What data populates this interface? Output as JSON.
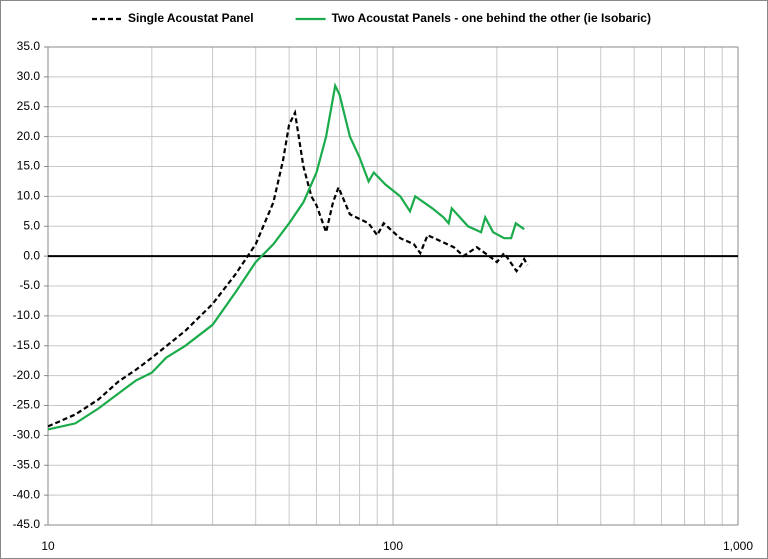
{
  "chart_data": {
    "type": "line",
    "xscale": "log",
    "grid": true,
    "legend": "top",
    "xlim": [
      10,
      1000
    ],
    "xticks": [
      10,
      100,
      {
        "value": 1000,
        "label": "1,000"
      }
    ],
    "ylim": [
      -45,
      35
    ],
    "yticks": [
      {
        "value": 35,
        "label": "35.0"
      },
      {
        "value": 30,
        "label": "30.0"
      },
      {
        "value": 25,
        "label": "25.0"
      },
      {
        "value": 20,
        "label": "20.0"
      },
      {
        "value": 15,
        "label": "15.0"
      },
      {
        "value": 10,
        "label": "10.0"
      },
      {
        "value": 5,
        "label": "5.0"
      },
      {
        "value": 0,
        "label": "0.0"
      },
      {
        "value": -5,
        "label": "-5.0"
      },
      {
        "value": -10,
        "label": "-10.0"
      },
      {
        "value": -15,
        "label": "-15.0"
      },
      {
        "value": -20,
        "label": "-20.0"
      },
      {
        "value": -25,
        "label": "-25.0"
      },
      {
        "value": -30,
        "label": "-30.0"
      },
      {
        "value": -35,
        "label": "-35.0"
      },
      {
        "value": -40,
        "label": "-40.0"
      },
      {
        "value": -45,
        "label": "-45.0"
      }
    ],
    "series": [
      {
        "name": "Single Acoustat Panel",
        "color": "#000000",
        "line_style": "dashed",
        "x": [
          10,
          12,
          14,
          16,
          18,
          20,
          25,
          30,
          35,
          40,
          45,
          48,
          50,
          52,
          55,
          58,
          60,
          64,
          67,
          69.5,
          75,
          85,
          90,
          94,
          105,
          115,
          120,
          126,
          150,
          160,
          175,
          190,
          200,
          210,
          228,
          235,
          240,
          245
        ],
        "values": [
          -28.5,
          -26.5,
          -24,
          -21,
          -19,
          -17,
          -12.5,
          -8,
          -3,
          2,
          9,
          16,
          22,
          24,
          15,
          10,
          8.5,
          4,
          9,
          11.5,
          7,
          5.5,
          3.5,
          5.5,
          3,
          2,
          0.5,
          3.5,
          1.5,
          0,
          1.5,
          0,
          -1,
          0.5,
          -2.5,
          -1.5,
          -0.5,
          -1.5
        ]
      },
      {
        "name": "Two Acoustat Panels - one behind the other (ie Isobaric)",
        "color": "#1aab4b",
        "line_style": "solid",
        "x": [
          10,
          12,
          14,
          16,
          18,
          20,
          22,
          25,
          30,
          35,
          40,
          45,
          50,
          55,
          60,
          64,
          68,
          70,
          75,
          80,
          85,
          88,
          95,
          105,
          112,
          116,
          130,
          140,
          145,
          148,
          165,
          180,
          185,
          195,
          210,
          220,
          227,
          240
        ],
        "values": [
          -29,
          -28,
          -25.5,
          -23,
          -20.8,
          -19.5,
          -17,
          -15,
          -11.5,
          -6,
          -1,
          2,
          5.5,
          9,
          14,
          20,
          28.5,
          27,
          20,
          16.5,
          12.5,
          14,
          12,
          10,
          7.5,
          10,
          8,
          6.5,
          5.5,
          8,
          5,
          4,
          6.5,
          4,
          3,
          3,
          5.5,
          4.5
        ]
      }
    ]
  }
}
